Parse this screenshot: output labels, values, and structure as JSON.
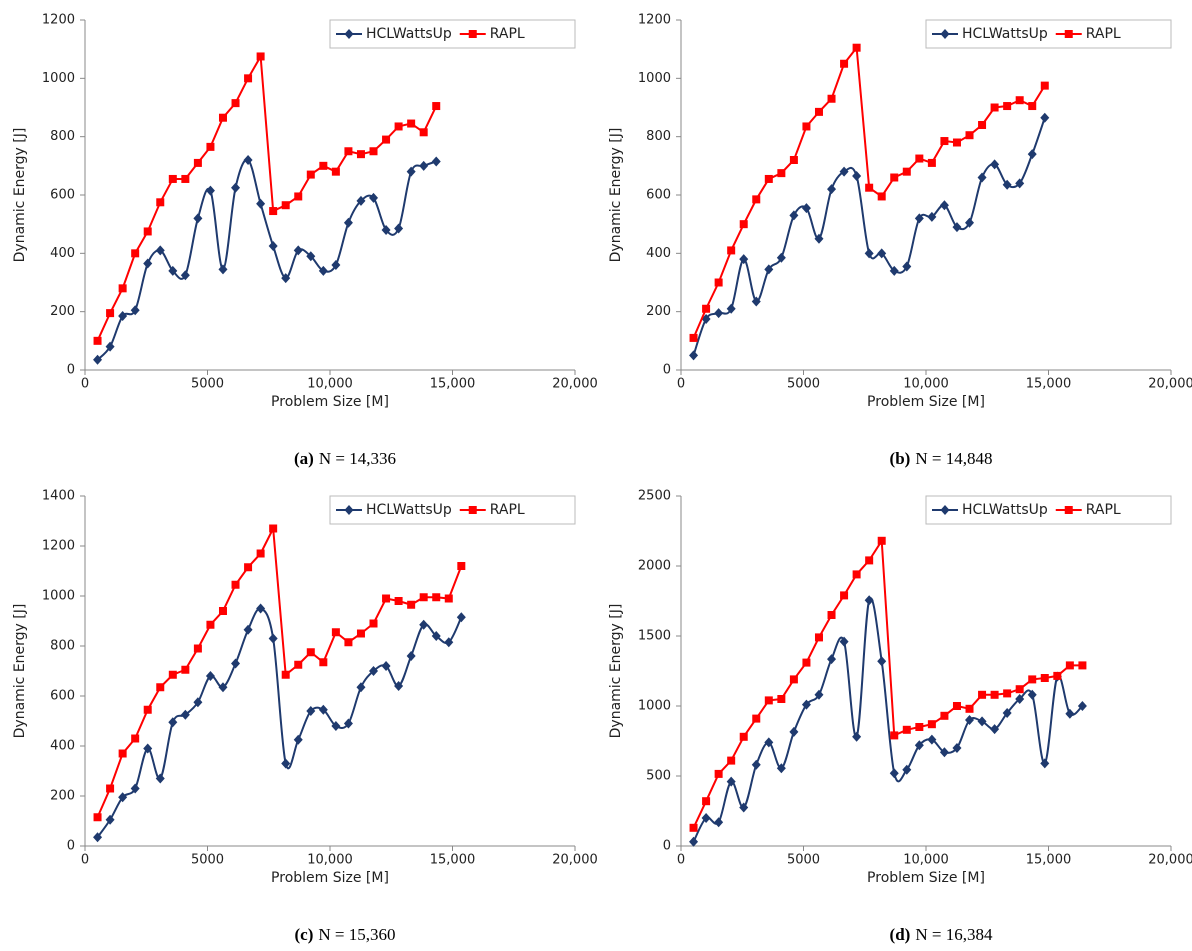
{
  "chart_data": [
    {
      "type": "line",
      "caption_label": "(a)",
      "caption": "N = 14,336",
      "xlabel": "Problem Size [M]",
      "ylabel": "Dynamic Energy [J]",
      "x": [
        512,
        1024,
        1536,
        2048,
        2560,
        3072,
        3584,
        4096,
        4608,
        5120,
        5632,
        6144,
        6656,
        7168,
        7680,
        8192,
        8704,
        9216,
        9728,
        10240,
        10752,
        11264,
        11776,
        12288,
        12800,
        13312,
        13824,
        14336
      ],
      "series": [
        {
          "name": "HCLWattsUp",
          "color": "#1f3a6e",
          "marker": "diamond",
          "smooth": true,
          "values": [
            35,
            80,
            185,
            205,
            365,
            410,
            340,
            325,
            520,
            615,
            345,
            625,
            720,
            570,
            425,
            315,
            410,
            390,
            340,
            360,
            505,
            580,
            590,
            480,
            485,
            680,
            700,
            715
          ]
        },
        {
          "name": "RAPL",
          "color": "#ff0000",
          "marker": "square",
          "smooth": false,
          "values": [
            100,
            195,
            280,
            400,
            475,
            575,
            655,
            655,
            710,
            765,
            865,
            915,
            1000,
            1075,
            545,
            565,
            595,
            670,
            700,
            680,
            750,
            740,
            750,
            790,
            835,
            845,
            815,
            905
          ]
        }
      ],
      "xlim": [
        0,
        20000
      ],
      "xticks": [
        0,
        5000,
        {
          "value": 10000,
          "label": "10,000"
        },
        {
          "value": 15000,
          "label": "15,000"
        },
        {
          "value": 20000,
          "label": "20,000"
        }
      ],
      "ylim": [
        0,
        1200
      ],
      "yticks": [
        0,
        200,
        400,
        600,
        800,
        1000,
        1200
      ],
      "grid": false,
      "legend": "upper right"
    },
    {
      "type": "line",
      "caption_label": "(b)",
      "caption": "N = 14,848",
      "xlabel": "Problem Size [M]",
      "ylabel": "Dynamic Energy [J]",
      "x": [
        512,
        1024,
        1536,
        2048,
        2560,
        3072,
        3584,
        4096,
        4608,
        5120,
        5632,
        6144,
        6656,
        7168,
        7680,
        8192,
        8704,
        9216,
        9728,
        10240,
        10752,
        11264,
        11776,
        12288,
        12800,
        13312,
        13824,
        14336,
        14848
      ],
      "series": [
        {
          "name": "HCLWattsUp",
          "color": "#1f3a6e",
          "marker": "diamond",
          "smooth": true,
          "values": [
            50,
            175,
            195,
            210,
            380,
            235,
            345,
            385,
            530,
            555,
            450,
            620,
            680,
            665,
            400,
            400,
            340,
            355,
            520,
            525,
            565,
            490,
            505,
            660,
            705,
            635,
            640,
            740,
            865
          ]
        },
        {
          "name": "RAPL",
          "color": "#ff0000",
          "marker": "square",
          "smooth": false,
          "values": [
            110,
            210,
            300,
            410,
            500,
            585,
            655,
            675,
            720,
            835,
            885,
            930,
            1050,
            1105,
            625,
            595,
            660,
            680,
            725,
            710,
            785,
            780,
            805,
            840,
            900,
            905,
            925,
            905,
            975
          ]
        }
      ],
      "xlim": [
        0,
        20000
      ],
      "xticks": [
        0,
        5000,
        {
          "value": 10000,
          "label": "10,000"
        },
        {
          "value": 15000,
          "label": "15,000"
        },
        {
          "value": 20000,
          "label": "20,000"
        }
      ],
      "ylim": [
        0,
        1200
      ],
      "yticks": [
        0,
        200,
        400,
        600,
        800,
        1000,
        1200
      ],
      "grid": false,
      "legend": "upper right"
    },
    {
      "type": "line",
      "caption_label": "(c)",
      "caption": "N = 15,360",
      "xlabel": "Problem Size [M]",
      "ylabel": "Dynamic Energy [J]",
      "x": [
        512,
        1024,
        1536,
        2048,
        2560,
        3072,
        3584,
        4096,
        4608,
        5120,
        5632,
        6144,
        6656,
        7168,
        7680,
        8192,
        8704,
        9216,
        9728,
        10240,
        10752,
        11264,
        11776,
        12288,
        12800,
        13312,
        13824,
        14336,
        14848,
        15360
      ],
      "series": [
        {
          "name": "HCLWattsUp",
          "color": "#1f3a6e",
          "marker": "diamond",
          "smooth": true,
          "values": [
            35,
            105,
            195,
            230,
            390,
            270,
            495,
            525,
            575,
            680,
            635,
            730,
            865,
            950,
            830,
            330,
            425,
            540,
            545,
            480,
            490,
            635,
            700,
            720,
            640,
            760,
            885,
            840,
            815,
            915
          ]
        },
        {
          "name": "RAPL",
          "color": "#ff0000",
          "marker": "square",
          "smooth": false,
          "values": [
            115,
            230,
            370,
            430,
            545,
            635,
            685,
            705,
            790,
            885,
            940,
            1045,
            1115,
            1170,
            1270,
            685,
            725,
            775,
            735,
            855,
            815,
            850,
            890,
            990,
            980,
            965,
            995,
            995,
            990,
            1120
          ]
        }
      ],
      "xlim": [
        0,
        20000
      ],
      "xticks": [
        0,
        5000,
        {
          "value": 10000,
          "label": "10,000"
        },
        {
          "value": 15000,
          "label": "15,000"
        },
        {
          "value": 20000,
          "label": "20,000"
        }
      ],
      "ylim": [
        0,
        1400
      ],
      "yticks": [
        0,
        200,
        400,
        600,
        800,
        1000,
        1200,
        1400
      ],
      "grid": false,
      "legend": "upper right"
    },
    {
      "type": "line",
      "caption_label": "(d)",
      "caption": "N = 16,384",
      "xlabel": "Problem Size [M]",
      "ylabel": "Dynamic Energy [J]",
      "x": [
        512,
        1024,
        1536,
        2048,
        2560,
        3072,
        3584,
        4096,
        4608,
        5120,
        5632,
        6144,
        6656,
        7168,
        7680,
        8192,
        8704,
        9216,
        9728,
        10240,
        10752,
        11264,
        11776,
        12288,
        12800,
        13312,
        13824,
        14336,
        14848,
        15360,
        15872,
        16384
      ],
      "series": [
        {
          "name": "HCLWattsUp",
          "color": "#1f3a6e",
          "marker": "diamond",
          "smooth": true,
          "values": [
            30,
            200,
            170,
            460,
            275,
            580,
            740,
            555,
            815,
            1010,
            1080,
            1335,
            1460,
            780,
            1755,
            1320,
            520,
            545,
            720,
            760,
            670,
            700,
            900,
            890,
            835,
            950,
            1050,
            1080,
            590,
            1210,
            945,
            1000
          ]
        },
        {
          "name": "RAPL",
          "color": "#ff0000",
          "marker": "square",
          "smooth": false,
          "values": [
            130,
            320,
            515,
            610,
            780,
            910,
            1040,
            1050,
            1190,
            1310,
            1490,
            1650,
            1790,
            1940,
            2040,
            2180,
            790,
            830,
            850,
            870,
            930,
            1000,
            980,
            1080,
            1080,
            1090,
            1120,
            1190,
            1200,
            1215,
            1290,
            1290
          ]
        }
      ],
      "xlim": [
        0,
        20000
      ],
      "xticks": [
        0,
        5000,
        {
          "value": 10000,
          "label": "10,000"
        },
        {
          "value": 15000,
          "label": "15,000"
        },
        {
          "value": 20000,
          "label": "20,000"
        }
      ],
      "ylim": [
        0,
        2500
      ],
      "yticks": [
        0,
        500,
        1000,
        1500,
        2000,
        2500
      ],
      "grid": false,
      "legend": "upper right"
    }
  ]
}
